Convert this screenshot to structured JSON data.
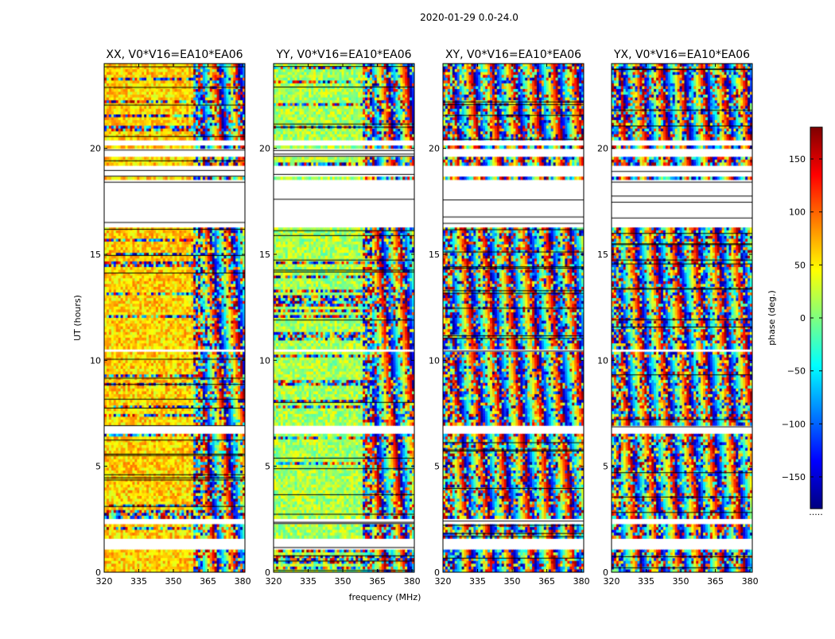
{
  "chart_data": {
    "type": "heatmap",
    "suptitle": "2020-01-29 0.0-24.0",
    "xlabel": "frequency (MHz)",
    "ylabel": "UT (hours)",
    "xlim": [
      320,
      381
    ],
    "ylim": [
      0,
      24
    ],
    "xticks": [
      "320",
      "335",
      "350",
      "365",
      "380"
    ],
    "xtick_values": [
      320,
      335,
      350,
      365,
      380
    ],
    "yticks": [
      "0",
      "5",
      "10",
      "15",
      "20"
    ],
    "ytick_values": [
      0,
      5,
      10,
      15,
      20
    ],
    "panels": [
      {
        "title": "XX, V0*V16=EA10*EA06",
        "dominant_phase_deg": 60,
        "fringe_start_mhz": 359
      },
      {
        "title": "YY, V0*V16=EA10*EA06",
        "dominant_phase_deg": 15,
        "fringe_start_mhz": 359
      },
      {
        "title": "XY, V0*V16=EA10*EA06",
        "dominant_phase_deg": null,
        "fringe_start_mhz": 320
      },
      {
        "title": "YX, V0*V16=EA10*EA06",
        "dominant_phase_deg": null,
        "fringe_start_mhz": 320
      }
    ],
    "blank_ut_ranges_hours": [
      [
        1.1,
        1.6
      ],
      [
        2.3,
        2.5
      ],
      [
        5.7,
        5.8
      ],
      [
        6.5,
        7.0
      ],
      [
        10.4,
        10.6
      ],
      [
        16.3,
        18.6
      ],
      [
        18.7,
        19.2
      ],
      [
        19.6,
        20.0
      ],
      [
        20.2,
        20.4
      ]
    ],
    "colorbar": {
      "label": "phase (deg.)",
      "range": [
        -180,
        180
      ],
      "ticks": [
        "150",
        "100",
        "50",
        "0",
        "−50",
        "−100",
        "−150"
      ],
      "tick_values": [
        150,
        100,
        50,
        0,
        -50,
        -100,
        -150
      ],
      "colormap": "jet",
      "colors": [
        "#00007f",
        "#0000ff",
        "#007fff",
        "#00ffff",
        "#7fff7f",
        "#ffff00",
        "#ff7f00",
        "#ff0000",
        "#7f0000"
      ],
      "footnote": "....."
    }
  }
}
